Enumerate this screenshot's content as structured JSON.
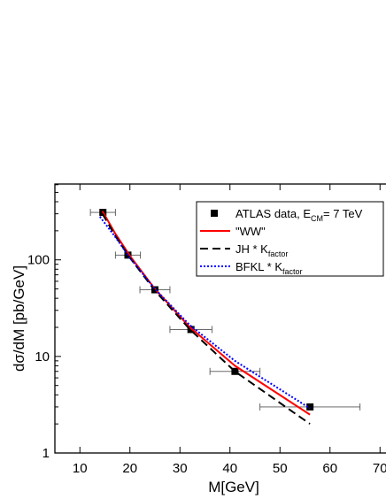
{
  "chart_data": {
    "type": "line",
    "x_label": "M[GeV]",
    "y_label": "dσ/dM [pb/GeV]",
    "xlim": [
      5,
      75
    ],
    "xticks": [
      10,
      20,
      30,
      40,
      50,
      60,
      70
    ],
    "ylim": [
      1,
      610
    ],
    "yticks": [
      1,
      10,
      100
    ],
    "ylog": true,
    "legend": "top-right",
    "series": [
      {
        "name": [
          "ATLAS data, E",
          "CM",
          "= 7 TeV"
        ],
        "style": "points",
        "color": "#000000",
        "x": [
          14.6,
          19.6,
          25,
          32.2,
          41,
          56
        ],
        "values": [
          310,
          112,
          49,
          19,
          7,
          3
        ],
        "xerr": [
          2.5,
          2.5,
          3,
          4.2,
          5,
          10
        ]
      },
      {
        "name": [
          "\"WW\""
        ],
        "style": "solid",
        "color": "#ff0000",
        "x": [
          14.5,
          17,
          20,
          25,
          32,
          41,
          56
        ],
        "values": [
          320,
          190,
          110,
          50,
          20,
          8,
          2.5
        ]
      },
      {
        "name": [
          "JH * K",
          "factor"
        ],
        "style": "dashed",
        "color": "#000000",
        "x": [
          14.5,
          17,
          20,
          25,
          32,
          41,
          56
        ],
        "values": [
          300,
          180,
          105,
          48,
          19,
          7,
          2
        ]
      },
      {
        "name": [
          "BFKL * K",
          "factor"
        ],
        "style": "dotted",
        "color": "#0000ff",
        "x": [
          14,
          17,
          20,
          25,
          32,
          41,
          56
        ],
        "values": [
          280,
          175,
          105,
          50,
          21,
          9,
          2.9
        ]
      }
    ]
  }
}
